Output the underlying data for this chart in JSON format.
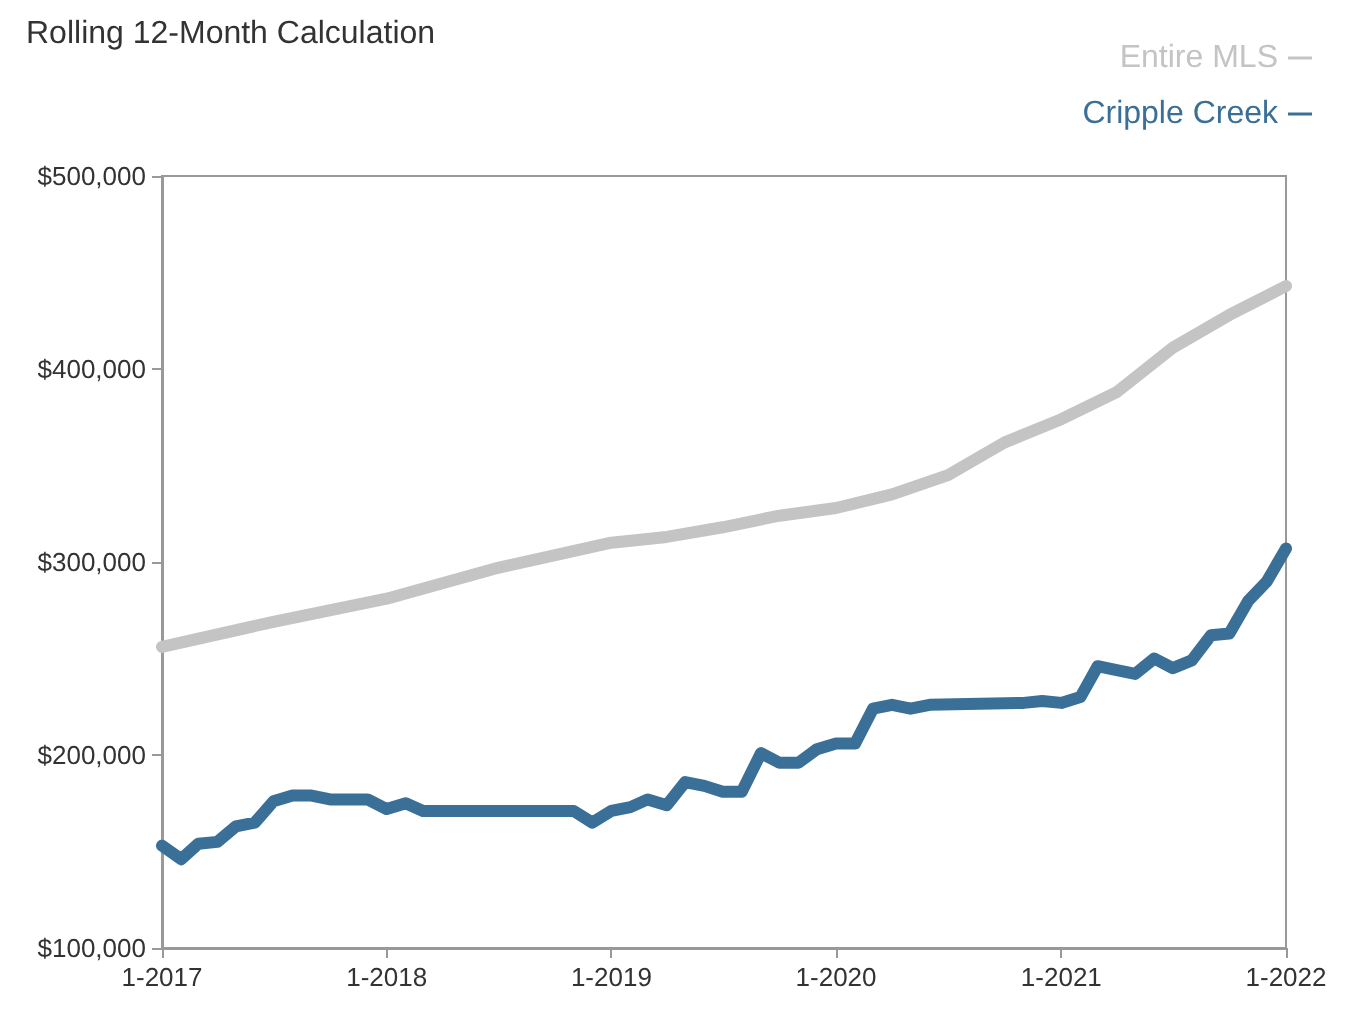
{
  "chart_data": {
    "type": "line",
    "title": "Rolling 12-Month Calculation",
    "xlim": [
      "2017-01",
      "2022-01"
    ],
    "xticks": [
      {
        "value": "2017-01",
        "label": "1-2017"
      },
      {
        "value": "2018-01",
        "label": "1-2018"
      },
      {
        "value": "2019-01",
        "label": "1-2019"
      },
      {
        "value": "2020-01",
        "label": "1-2020"
      },
      {
        "value": "2021-01",
        "label": "1-2021"
      },
      {
        "value": "2022-01",
        "label": "1-2022"
      }
    ],
    "ylim": [
      100000,
      500000
    ],
    "yticks": [
      {
        "value": 100000,
        "label": "$100,000"
      },
      {
        "value": 200000,
        "label": "$200,000"
      },
      {
        "value": 300000,
        "label": "$300,000"
      },
      {
        "value": 400000,
        "label": "$400,000"
      },
      {
        "value": 500000,
        "label": "$500,000"
      }
    ],
    "grid": false,
    "legend": "top right",
    "marker": "none",
    "line_style": "solid",
    "series": [
      {
        "name": "Entire MLS",
        "color": "#c4c4c4",
        "x": [
          "2017-01",
          "2017-07",
          "2018-01",
          "2018-07",
          "2019-01",
          "2019-04",
          "2019-07",
          "2019-10",
          "2020-01",
          "2020-04",
          "2020-07",
          "2020-10",
          "2021-01",
          "2021-04",
          "2021-07",
          "2021-10",
          "2022-01"
        ],
        "values": [
          256000,
          269000,
          281000,
          297000,
          310000,
          313000,
          318000,
          324000,
          328000,
          335000,
          345000,
          362000,
          374000,
          388000,
          411000,
          428000,
          443000
        ]
      },
      {
        "name": "Cripple Creek",
        "color": "#3a6f98",
        "x": [
          "2017-01",
          "2017-02",
          "2017-03",
          "2017-04",
          "2017-05",
          "2017-06",
          "2017-07",
          "2017-08",
          "2017-09",
          "2017-10",
          "2017-11",
          "2017-12",
          "2018-01",
          "2018-02",
          "2018-03",
          "2018-11",
          "2018-12",
          "2019-01",
          "2019-02",
          "2019-03",
          "2019-04",
          "2019-05",
          "2019-06",
          "2019-07",
          "2019-08",
          "2019-09",
          "2019-10",
          "2019-11",
          "2019-12",
          "2020-01",
          "2020-02",
          "2020-03",
          "2020-04",
          "2020-05",
          "2020-06",
          "2020-11",
          "2020-12",
          "2021-01",
          "2021-02",
          "2021-03",
          "2021-04",
          "2021-05",
          "2021-06",
          "2021-07",
          "2021-08",
          "2021-09",
          "2021-10",
          "2021-11",
          "2021-12",
          "2022-01"
        ],
        "values": [
          153000,
          146000,
          154000,
          155000,
          163000,
          165000,
          176000,
          179000,
          179000,
          177000,
          177000,
          177000,
          172000,
          175000,
          171000,
          171000,
          165000,
          171000,
          173000,
          177000,
          174000,
          186000,
          184000,
          181000,
          181000,
          201000,
          196000,
          196000,
          203000,
          206000,
          206000,
          224000,
          226000,
          224000,
          226000,
          227000,
          228000,
          227000,
          230000,
          246000,
          244000,
          242000,
          250000,
          245000,
          249000,
          262000,
          263000,
          280000,
          290000,
          307000
        ]
      }
    ]
  }
}
